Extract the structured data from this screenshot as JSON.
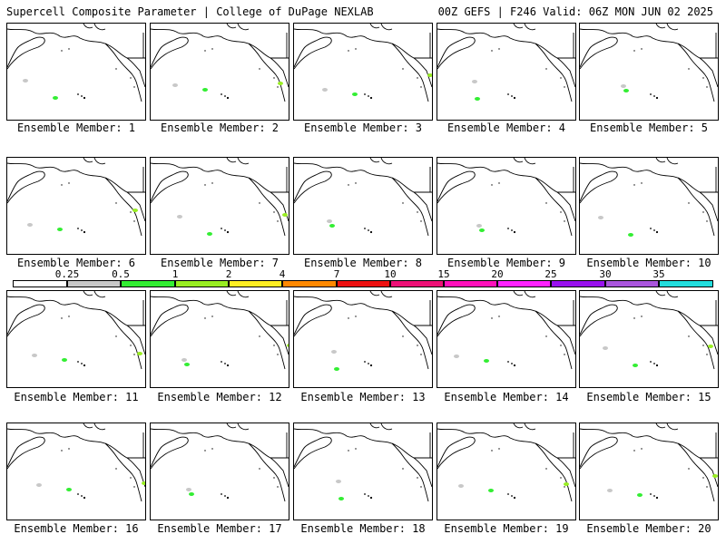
{
  "header": {
    "left_title": "Supercell Composite Parameter | College of DuPage NEXLAB",
    "right_title": "00Z GEFS | F246 Valid: 06Z MON JUN 02 2025"
  },
  "member_label_prefix": "Ensemble Member:",
  "members": [
    {
      "number": "1"
    },
    {
      "number": "2"
    },
    {
      "number": "3"
    },
    {
      "number": "4"
    },
    {
      "number": "5"
    },
    {
      "number": "6"
    },
    {
      "number": "7"
    },
    {
      "number": "8"
    },
    {
      "number": "9"
    },
    {
      "number": "10"
    },
    {
      "number": "11"
    },
    {
      "number": "12"
    },
    {
      "number": "13"
    },
    {
      "number": "14"
    },
    {
      "number": "15"
    },
    {
      "number": "16"
    },
    {
      "number": "17"
    },
    {
      "number": "18"
    },
    {
      "number": "19"
    },
    {
      "number": "20"
    }
  ],
  "colorbar": {
    "ticks": [
      "0.25",
      "0.5",
      "1",
      "2",
      "4",
      "7",
      "10",
      "15",
      "20",
      "25",
      "30",
      "35"
    ],
    "colors": [
      "#ffffff",
      "#c8c8c8",
      "#33ee33",
      "#99ee22",
      "#ffee22",
      "#ff8800",
      "#ee1111",
      "#ee1177",
      "#ff11bb",
      "#ff22ff",
      "#9911ee",
      "#aa55dd",
      "#22dddd"
    ]
  }
}
